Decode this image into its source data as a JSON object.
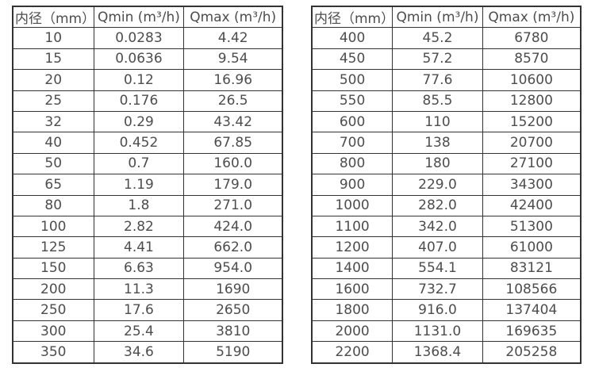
{
  "colors": {
    "background": "#ffffff",
    "border": "#333333",
    "text": "#4d4d4d"
  },
  "tables": [
    {
      "id": "flow-table-small-diameters",
      "headers": [
        "内径（mm）",
        "Qmin (m³/h)",
        "Qmax (m³/h)"
      ],
      "rows": [
        [
          "10",
          "0.0283",
          "4.42"
        ],
        [
          "15",
          "0.0636",
          "9.54"
        ],
        [
          "20",
          "0.12",
          "16.96"
        ],
        [
          "25",
          "0.176",
          "26.5"
        ],
        [
          "32",
          "0.29",
          "43.42"
        ],
        [
          "40",
          "0.452",
          "67.85"
        ],
        [
          "50",
          "0.7",
          "160.0"
        ],
        [
          "65",
          "1.19",
          "179.0"
        ],
        [
          "80",
          "1.8",
          "271.0"
        ],
        [
          "100",
          "2.82",
          "424.0"
        ],
        [
          "125",
          "4.41",
          "662.0"
        ],
        [
          "150",
          "6.63",
          "954.0"
        ],
        [
          "200",
          "11.3",
          "1690"
        ],
        [
          "250",
          "17.6",
          "2650"
        ],
        [
          "300",
          "25.4",
          "3810"
        ],
        [
          "350",
          "34.6",
          "5190"
        ]
      ]
    },
    {
      "id": "flow-table-large-diameters",
      "headers": [
        "内径（mm）",
        "Qmin (m³/h)",
        "Qmax (m³/h)"
      ],
      "rows": [
        [
          "400",
          "45.2",
          "6780"
        ],
        [
          "450",
          "57.2",
          "8570"
        ],
        [
          "500",
          "77.6",
          "10600"
        ],
        [
          "550",
          "85.5",
          "12800"
        ],
        [
          "600",
          "110",
          "15200"
        ],
        [
          "700",
          "138",
          "20700"
        ],
        [
          "800",
          "180",
          "27100"
        ],
        [
          "900",
          "229.0",
          "34300"
        ],
        [
          "1000",
          "282.0",
          "42400"
        ],
        [
          "1100",
          "342.0",
          "51300"
        ],
        [
          "1200",
          "407.0",
          "61000"
        ],
        [
          "1400",
          "554.1",
          "83121"
        ],
        [
          "1600",
          "732.7",
          "108566"
        ],
        [
          "1800",
          "916.0",
          "137404"
        ],
        [
          "2000",
          "1131.0",
          "169635"
        ],
        [
          "2200",
          "1368.4",
          "205258"
        ]
      ]
    }
  ]
}
